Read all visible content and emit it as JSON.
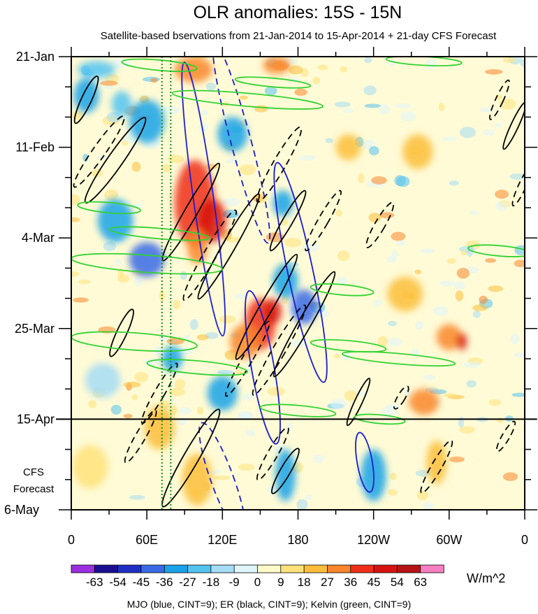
{
  "chart_data": {
    "type": "heatmap",
    "title": "OLR anomalies: 15S - 15N",
    "subtitle": "Satellite-based bservations from 21-Jan-2014 to 15-Apr-2014 + 21-day CFS Forecast",
    "x_ticks": [
      {
        "lon": 0,
        "label": "0"
      },
      {
        "lon": 60,
        "label": "60E"
      },
      {
        "lon": 120,
        "label": "120E"
      },
      {
        "lon": 180,
        "label": "180"
      },
      {
        "lon": 240,
        "label": "120W"
      },
      {
        "lon": 300,
        "label": "60W"
      },
      {
        "lon": 360,
        "label": "0"
      }
    ],
    "xlim": [
      0,
      360
    ],
    "y_ticks": [
      {
        "day": 0,
        "label": "21-Jan"
      },
      {
        "day": 21,
        "label": "11-Feb"
      },
      {
        "day": 42,
        "label": "4-Mar"
      },
      {
        "day": 63,
        "label": "25-Mar"
      },
      {
        "day": 84,
        "label": "15-Apr"
      },
      {
        "day": 105,
        "label": "6-May"
      }
    ],
    "ylim": [
      0,
      105
    ],
    "forecast_start_day": 84,
    "forecast_label_line1": "CFS",
    "forecast_label_line2": "Forecast",
    "reference_lon_lines": [
      72,
      79
    ],
    "colorbar": {
      "levels": [
        "-63",
        "-54",
        "-45",
        "-36",
        "-27",
        "-18",
        "-9",
        "0",
        "9",
        "18",
        "27",
        "36",
        "45",
        "54",
        "63"
      ],
      "colors": [
        "#9a2fe0",
        "#1a0f8f",
        "#1f2fc4",
        "#3a6ae6",
        "#1aa2e8",
        "#54c3f0",
        "#a6dcf5",
        "#e0f5fc",
        "#fffbc8",
        "#ffe27a",
        "#fcbe3a",
        "#f9862c",
        "#ee2f1a",
        "#d6140f",
        "#b51414",
        "#f77ec0"
      ],
      "units": "W/m^2"
    },
    "contour_legend": "MJO (blue, CINT=9); ER (black, CINT=9); Kelvin (green, CINT=9)",
    "anomaly_blobs": [
      {
        "lon": 97,
        "day": 3,
        "rx": 15,
        "ry": 3,
        "value": 30
      },
      {
        "lon": 163,
        "day": 2,
        "rx": 11,
        "ry": 2,
        "value": 27
      },
      {
        "lon": 20,
        "day": 3,
        "rx": 15,
        "ry": 2,
        "value": -20
      },
      {
        "lon": 12,
        "day": 9,
        "rx": 10,
        "ry": 4,
        "value": -30
      },
      {
        "lon": 40,
        "day": 11,
        "rx": 8,
        "ry": 3,
        "value": -27
      },
      {
        "lon": 60,
        "day": 15,
        "rx": 14,
        "ry": 5,
        "value": -36
      },
      {
        "lon": 128,
        "day": 18,
        "rx": 12,
        "ry": 4,
        "value": -30
      },
      {
        "lon": 220,
        "day": 21,
        "rx": 10,
        "ry": 3,
        "value": 18
      },
      {
        "lon": 275,
        "day": 22,
        "rx": 12,
        "ry": 4,
        "value": 18
      },
      {
        "lon": 98,
        "day": 34,
        "rx": 16,
        "ry": 10,
        "value": 40
      },
      {
        "lon": 112,
        "day": 38,
        "rx": 11,
        "ry": 5,
        "value": 45
      },
      {
        "lon": 100,
        "day": 44,
        "rx": 8,
        "ry": 4,
        "value": 27
      },
      {
        "lon": 35,
        "day": 38,
        "rx": 14,
        "ry": 5,
        "value": -36
      },
      {
        "lon": 60,
        "day": 47,
        "rx": 14,
        "ry": 4,
        "value": -40
      },
      {
        "lon": 168,
        "day": 34,
        "rx": 8,
        "ry": 3,
        "value": -36
      },
      {
        "lon": 170,
        "day": 52,
        "rx": 10,
        "ry": 4,
        "value": -36
      },
      {
        "lon": 185,
        "day": 58,
        "rx": 10,
        "ry": 4,
        "value": -40
      },
      {
        "lon": 150,
        "day": 62,
        "rx": 12,
        "ry": 6,
        "value": 36
      },
      {
        "lon": 160,
        "day": 59,
        "rx": 7,
        "ry": 3,
        "value": 45
      },
      {
        "lon": 138,
        "day": 66,
        "rx": 12,
        "ry": 4,
        "value": 27
      },
      {
        "lon": 265,
        "day": 55,
        "rx": 14,
        "ry": 4,
        "value": 18
      },
      {
        "lon": 300,
        "day": 65,
        "rx": 10,
        "ry": 3,
        "value": 27
      },
      {
        "lon": 310,
        "day": 66,
        "rx": 4,
        "ry": 2,
        "value": 45
      },
      {
        "lon": 80,
        "day": 70,
        "rx": 8,
        "ry": 3,
        "value": -36
      },
      {
        "lon": 120,
        "day": 78,
        "rx": 12,
        "ry": 4,
        "value": -30
      },
      {
        "lon": 25,
        "day": 75,
        "rx": 14,
        "ry": 4,
        "value": -18
      },
      {
        "lon": 280,
        "day": 80,
        "rx": 12,
        "ry": 3,
        "value": 27
      },
      {
        "lon": 70,
        "day": 86,
        "rx": 12,
        "ry": 5,
        "value": 18
      },
      {
        "lon": 170,
        "day": 97,
        "rx": 8,
        "ry": 6,
        "value": -30
      },
      {
        "lon": 240,
        "day": 97,
        "rx": 10,
        "ry": 6,
        "value": -30
      },
      {
        "lon": 290,
        "day": 94,
        "rx": 8,
        "ry": 5,
        "value": 18
      },
      {
        "lon": 15,
        "day": 95,
        "rx": 14,
        "ry": 5,
        "value": 9
      },
      {
        "lon": 100,
        "day": 98,
        "rx": 12,
        "ry": 6,
        "value": 18
      }
    ],
    "mjo_contours": [
      {
        "lon": 105,
        "day": 33,
        "rx": 8,
        "ry": 32,
        "rot": -8,
        "dashed": false
      },
      {
        "lon": 182,
        "day": 50,
        "rx": 10,
        "ry": 26,
        "rot": -12,
        "dashed": false
      },
      {
        "lon": 152,
        "day": 72,
        "rx": 9,
        "ry": 18,
        "rot": -10,
        "dashed": false
      },
      {
        "lon": 233,
        "day": 94,
        "rx": 6,
        "ry": 7,
        "rot": -10,
        "dashed": false
      },
      {
        "lon": 135,
        "day": 20,
        "rx": 8,
        "ry": 24,
        "rot": -15,
        "dashed": true
      },
      {
        "lon": 120,
        "day": 98,
        "rx": 9,
        "ry": 14,
        "rot": -20,
        "dashed": true
      }
    ],
    "er_contours": [
      {
        "lon": 12,
        "day": 10,
        "rx": 4,
        "ry": 6,
        "rot": 25,
        "dashed": false
      },
      {
        "lon": 35,
        "day": 24,
        "rx": 6,
        "ry": 12,
        "rot": 35,
        "dashed": false
      },
      {
        "lon": 22,
        "day": 22,
        "rx": 5,
        "ry": 10,
        "rot": 35,
        "dashed": true
      },
      {
        "lon": 95,
        "day": 36,
        "rx": 5,
        "ry": 13,
        "rot": 30,
        "dashed": false
      },
      {
        "lon": 125,
        "day": 44,
        "rx": 5,
        "ry": 14,
        "rot": 30,
        "dashed": false
      },
      {
        "lon": 172,
        "day": 38,
        "rx": 4,
        "ry": 8,
        "rot": 30,
        "dashed": false
      },
      {
        "lon": 155,
        "day": 58,
        "rx": 5,
        "ry": 14,
        "rot": 30,
        "dashed": false
      },
      {
        "lon": 185,
        "day": 62,
        "rx": 5,
        "ry": 14,
        "rot": 30,
        "dashed": false
      },
      {
        "lon": 40,
        "day": 64,
        "rx": 4,
        "ry": 6,
        "rot": 25,
        "dashed": false
      },
      {
        "lon": 95,
        "day": 93,
        "rx": 6,
        "ry": 13,
        "rot": 30,
        "dashed": false
      },
      {
        "lon": 170,
        "day": 96,
        "rx": 4,
        "ry": 6,
        "rot": 30,
        "dashed": false
      },
      {
        "lon": 228,
        "day": 80,
        "rx": 3,
        "ry": 6,
        "rot": 25,
        "dashed": false
      },
      {
        "lon": 352,
        "day": 16,
        "rx": 3,
        "ry": 6,
        "rot": 25,
        "dashed": false
      },
      {
        "lon": 340,
        "day": 10,
        "rx": 3,
        "ry": 5,
        "rot": 25,
        "dashed": true
      },
      {
        "lon": 358,
        "day": 30,
        "rx": 3,
        "ry": 5,
        "rot": 25,
        "dashed": true
      },
      {
        "lon": 165,
        "day": 25,
        "rx": 5,
        "ry": 10,
        "rot": 30,
        "dashed": true
      },
      {
        "lon": 110,
        "day": 46,
        "rx": 5,
        "ry": 12,
        "rot": 30,
        "dashed": true
      },
      {
        "lon": 200,
        "day": 38,
        "rx": 4,
        "ry": 8,
        "rot": 30,
        "dashed": true
      },
      {
        "lon": 245,
        "day": 39,
        "rx": 4,
        "ry": 6,
        "rot": 30,
        "dashed": true
      },
      {
        "lon": 165,
        "day": 68,
        "rx": 5,
        "ry": 12,
        "rot": 30,
        "dashed": true
      },
      {
        "lon": 140,
        "day": 70,
        "rx": 4,
        "ry": 10,
        "rot": 30,
        "dashed": true
      },
      {
        "lon": 70,
        "day": 78,
        "rx": 4,
        "ry": 8,
        "rot": 30,
        "dashed": true
      },
      {
        "lon": 160,
        "day": 92,
        "rx": 4,
        "ry": 7,
        "rot": 30,
        "dashed": true
      },
      {
        "lon": 290,
        "day": 95,
        "rx": 4,
        "ry": 7,
        "rot": 30,
        "dashed": true
      },
      {
        "lon": 345,
        "day": 88,
        "rx": 3,
        "ry": 4,
        "rot": 30,
        "dashed": true
      },
      {
        "lon": 262,
        "day": 79,
        "rx": 3,
        "ry": 3,
        "rot": 30,
        "dashed": true
      },
      {
        "lon": 55,
        "day": 88,
        "rx": 4,
        "ry": 7,
        "rot": 30,
        "dashed": true
      }
    ],
    "kelvin_contours": [
      {
        "lon": 70,
        "day": 2,
        "rx": 30,
        "ry": 1.2,
        "rot": 5,
        "dashed": false
      },
      {
        "lon": 140,
        "day": 10,
        "rx": 60,
        "ry": 1.5,
        "rot": 5,
        "dashed": false
      },
      {
        "lon": 160,
        "day": 6,
        "rx": 30,
        "ry": 1,
        "rot": 5,
        "dashed": false
      },
      {
        "lon": 30,
        "day": 35,
        "rx": 25,
        "ry": 1.2,
        "rot": 5,
        "dashed": false
      },
      {
        "lon": 70,
        "day": 41,
        "rx": 40,
        "ry": 1.2,
        "rot": 5,
        "dashed": false
      },
      {
        "lon": 60,
        "day": 48,
        "rx": 60,
        "ry": 2,
        "rot": 4,
        "dashed": false
      },
      {
        "lon": 50,
        "day": 66,
        "rx": 50,
        "ry": 2,
        "rot": 4,
        "dashed": false
      },
      {
        "lon": 100,
        "day": 72,
        "rx": 40,
        "ry": 1.5,
        "rot": 5,
        "dashed": false
      },
      {
        "lon": 215,
        "day": 54,
        "rx": 25,
        "ry": 1.2,
        "rot": 5,
        "dashed": false
      },
      {
        "lon": 340,
        "day": 45,
        "rx": 25,
        "ry": 1.2,
        "rot": 5,
        "dashed": false
      },
      {
        "lon": 220,
        "day": 67,
        "rx": 30,
        "ry": 1.2,
        "rot": 5,
        "dashed": false
      },
      {
        "lon": 260,
        "day": 70,
        "rx": 45,
        "ry": 1.2,
        "rot": 5,
        "dashed": false
      },
      {
        "lon": 180,
        "day": 82,
        "rx": 30,
        "ry": 1.2,
        "rot": 5,
        "dashed": false
      },
      {
        "lon": 245,
        "day": 84,
        "rx": 20,
        "ry": 1,
        "rot": 5,
        "dashed": false
      },
      {
        "lon": 280,
        "day": 1,
        "rx": 30,
        "ry": 1,
        "rot": 3,
        "dashed": false
      }
    ]
  }
}
